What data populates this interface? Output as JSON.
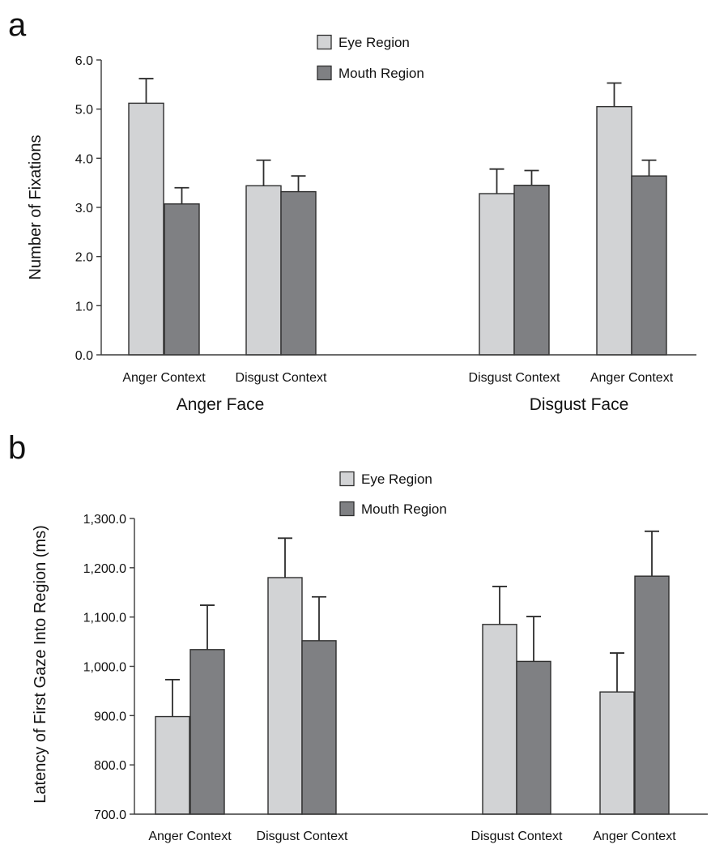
{
  "colors": {
    "eye": "#d2d3d5",
    "mouth": "#7f8083",
    "axis": "#3a3a3a",
    "bar_outline": "#2e2e2e"
  },
  "chart_data": [
    {
      "type": "bar",
      "panel": "a",
      "ylabel": "Number of Fixations",
      "ylim": [
        0,
        6
      ],
      "ytick_labels": [
        "0.0",
        "1.0",
        "2.0",
        "3.0",
        "4.0",
        "5.0",
        "6.0"
      ],
      "yticks": [
        0,
        1,
        2,
        3,
        4,
        5,
        6
      ],
      "groups": [
        {
          "label": "Anger Face",
          "categories": [
            "Anger Context",
            "Disgust Context"
          ]
        },
        {
          "label": "Disgust Face",
          "categories": [
            "Disgust Context",
            "Anger Context"
          ]
        }
      ],
      "legend": [
        "Eye Region",
        "Mouth Region"
      ],
      "legend_position": "top-center",
      "grid": false,
      "series": [
        {
          "name": "Eye Region",
          "values": [
            5.12,
            3.44,
            3.28,
            5.05
          ],
          "errors": [
            0.5,
            0.52,
            0.5,
            0.48
          ]
        },
        {
          "name": "Mouth Region",
          "values": [
            3.07,
            3.32,
            3.45,
            3.64
          ],
          "errors": [
            0.33,
            0.32,
            0.3,
            0.32
          ]
        }
      ]
    },
    {
      "type": "bar",
      "panel": "b",
      "ylabel": "Latency of First Gaze Into Region (ms)",
      "ylim": [
        700,
        1300
      ],
      "ytick_labels": [
        "700.0",
        "800.0",
        "900.0",
        "1,000.0",
        "1,100.0",
        "1,200.0",
        "1,300.0"
      ],
      "yticks": [
        700,
        800,
        900,
        1000,
        1100,
        1200,
        1300
      ],
      "groups": [
        {
          "label": "Anger Face",
          "categories": [
            "Anger Context",
            "Disgust Context"
          ]
        },
        {
          "label": "Disgust Face",
          "categories": [
            "Disgust Context",
            "Anger Context"
          ]
        }
      ],
      "legend": [
        "Eye Region",
        "Mouth Region"
      ],
      "legend_position": "top-center",
      "grid": false,
      "series": [
        {
          "name": "Eye Region",
          "values": [
            898,
            1180,
            1085,
            948
          ],
          "errors": [
            75,
            80,
            77,
            79
          ]
        },
        {
          "name": "Mouth Region",
          "values": [
            1034,
            1052,
            1010,
            1183
          ],
          "errors": [
            90,
            89,
            91,
            91
          ]
        }
      ]
    }
  ]
}
